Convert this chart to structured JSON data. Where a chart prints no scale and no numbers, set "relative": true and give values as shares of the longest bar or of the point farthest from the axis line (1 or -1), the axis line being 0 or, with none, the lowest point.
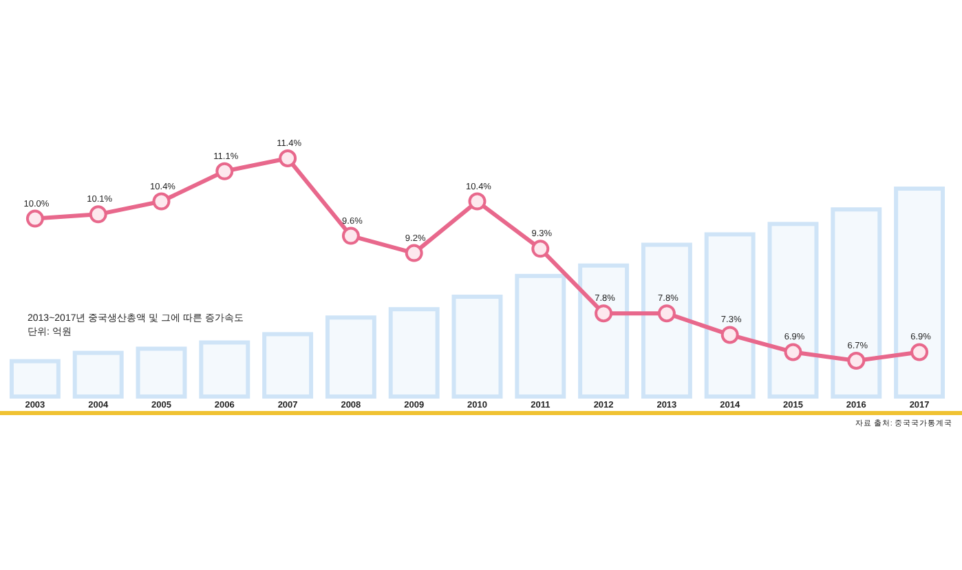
{
  "chart_data": [
    {
      "type": "bar",
      "title": "2013~2017년 중국생산총액 및 그에 따른 증가속도",
      "subtitle": "단위: 억원",
      "categories": [
        "2003",
        "2004",
        "2005",
        "2006",
        "2007",
        "2008",
        "2009",
        "2010",
        "2011",
        "2012",
        "2013",
        "2014",
        "2015",
        "2016",
        "2017"
      ],
      "values": [
        0.17,
        0.21,
        0.23,
        0.26,
        0.3,
        0.38,
        0.42,
        0.48,
        0.58,
        0.63,
        0.73,
        0.78,
        0.83,
        0.9,
        1
      ],
      "relative": true,
      "color": "#cfe4f7",
      "annotations": [
        "자료 출처: 중국국가통계국"
      ]
    },
    {
      "type": "line",
      "categories": [
        "2003",
        "2004",
        "2005",
        "2006",
        "2007",
        "2008",
        "2009",
        "2010",
        "2011",
        "2012",
        "2013",
        "2014",
        "2015",
        "2016",
        "2017"
      ],
      "values": [
        10.0,
        10.1,
        10.4,
        11.1,
        11.4,
        9.6,
        9.2,
        10.4,
        9.3,
        7.8,
        7.8,
        7.3,
        6.9,
        6.7,
        6.9
      ],
      "value_labels": [
        "10.0%",
        "10.1%",
        "10.4%",
        "11.1%",
        "11.4%",
        "9.6%",
        "9.2%",
        "10.4%",
        "9.3%",
        "7.8%",
        "7.8%",
        "7.3%",
        "6.9%",
        "6.7%",
        "6.9%"
      ],
      "color": "#e8688c",
      "marker": "circle",
      "tick_labels": false
    }
  ]
}
